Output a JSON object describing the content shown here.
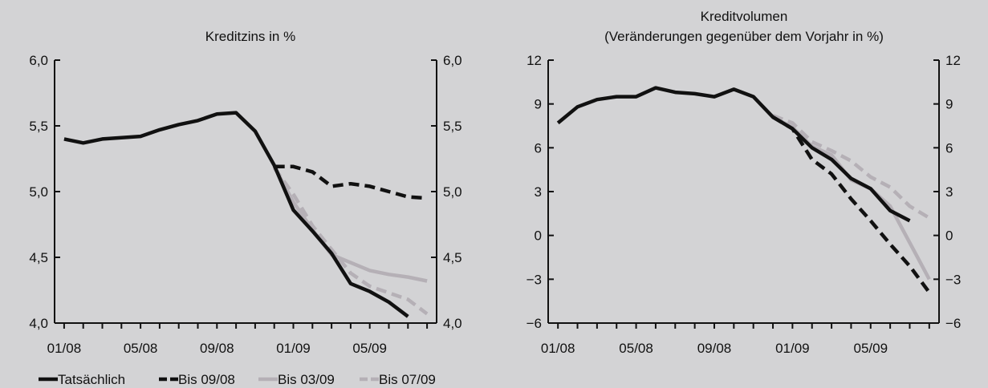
{
  "page": {
    "background": "#d3d3d5"
  },
  "legend": [
    {
      "label": "Tatsächlich",
      "color": "#111111",
      "dash": "solid"
    },
    {
      "label": "Bis 09/08",
      "color": "#111111",
      "dash": "dashed"
    },
    {
      "label": "Bis 03/09",
      "color": "#b5b0b6",
      "dash": "solid"
    },
    {
      "label": "Bis 07/09",
      "color": "#b5b0b6",
      "dash": "dashed"
    }
  ],
  "chart_data": [
    {
      "type": "line",
      "title": "Kreditzins in %",
      "title_lines": [
        "Kreditzins in %"
      ],
      "x_tick_labels": [
        "01/08",
        "05/08",
        "09/08",
        "01/09",
        "05/09"
      ],
      "x_tick_positions": [
        0,
        4,
        8,
        12,
        16
      ],
      "xlim": [
        -0.5,
        19.5
      ],
      "ylim": [
        4.0,
        6.0
      ],
      "y_ticks": [
        4.0,
        4.5,
        5.0,
        5.5,
        6.0
      ],
      "y_tick_labels": [
        "4,0",
        "4,5",
        "5,0",
        "5,5",
        "6,0"
      ],
      "grid": false,
      "series": [
        {
          "name": "Bis 07/09",
          "x": [
            11,
            12,
            13,
            14,
            15,
            16,
            17,
            18,
            19
          ],
          "values": [
            5.18,
            4.98,
            4.74,
            4.56,
            4.38,
            4.28,
            4.23,
            4.18,
            4.07
          ]
        },
        {
          "name": "Bis 03/09",
          "x": [
            11,
            12,
            13,
            14,
            15,
            16,
            17,
            18,
            19
          ],
          "values": [
            5.19,
            4.92,
            4.71,
            4.52,
            4.46,
            4.4,
            4.37,
            4.35,
            4.32
          ]
        },
        {
          "name": "Bis 09/08",
          "x": [
            11,
            12,
            13,
            14,
            15,
            16,
            17,
            18,
            19
          ],
          "values": [
            5.19,
            5.19,
            5.15,
            5.04,
            5.06,
            5.04,
            5.0,
            4.96,
            4.95
          ]
        },
        {
          "name": "Tatsächlich",
          "x": [
            0,
            1,
            2,
            3,
            4,
            5,
            6,
            7,
            8,
            9,
            10,
            11,
            12,
            13,
            14,
            15,
            16,
            17,
            18,
            19
          ],
          "values": [
            5.4,
            5.37,
            5.4,
            5.41,
            5.42,
            5.47,
            5.51,
            5.54,
            5.59,
            5.6,
            5.46,
            5.2,
            4.86,
            4.7,
            4.53,
            4.3,
            4.24,
            4.16,
            4.05,
            null
          ]
        }
      ]
    },
    {
      "type": "line",
      "title": "Kreditvolumen (Veränderungen gegenüber dem Vorjahr in %)",
      "title_lines": [
        "Kreditvolumen",
        "(Veränderungen gegenüber dem Vorjahr in %)"
      ],
      "x_tick_labels": [
        "01/08",
        "05/08",
        "09/08",
        "01/09",
        "05/09"
      ],
      "x_tick_positions": [
        0,
        4,
        8,
        12,
        16
      ],
      "xlim": [
        -0.5,
        19.5
      ],
      "ylim": [
        -6,
        12
      ],
      "y_ticks": [
        -6,
        -3,
        0,
        3,
        6,
        9,
        12
      ],
      "y_tick_labels": [
        "−6",
        "−3",
        "0",
        "3",
        "6",
        "9",
        "12"
      ],
      "grid": false,
      "series": [
        {
          "name": "Bis 07/09",
          "x": [
            11,
            12,
            13,
            14,
            15,
            16,
            17,
            18,
            19
          ],
          "values": [
            8.2,
            7.7,
            6.4,
            5.8,
            5.1,
            4.0,
            3.3,
            2.0,
            1.2
          ]
        },
        {
          "name": "Bis 03/09",
          "x": [
            11,
            12,
            13,
            14,
            15,
            16,
            17,
            18,
            19
          ],
          "values": [
            8.1,
            7.4,
            6.1,
            5.5,
            3.8,
            3.2,
            2.0,
            -0.5,
            -3.0
          ]
        },
        {
          "name": "Bis 09/08",
          "x": [
            11,
            12,
            13,
            14,
            15,
            16,
            17,
            18,
            19
          ],
          "values": [
            8.1,
            7.3,
            5.2,
            4.2,
            2.5,
            1.0,
            -0.6,
            -2.1,
            -3.9
          ]
        },
        {
          "name": "Tatsächlich",
          "x": [
            0,
            1,
            2,
            3,
            4,
            5,
            6,
            7,
            8,
            9,
            10,
            11,
            12,
            13,
            14,
            15,
            16,
            17,
            18,
            19
          ],
          "values": [
            7.7,
            8.8,
            9.3,
            9.5,
            9.5,
            10.1,
            9.8,
            9.7,
            9.5,
            10.0,
            9.5,
            8.1,
            7.3,
            6.0,
            5.2,
            3.9,
            3.2,
            1.7,
            1.0,
            null
          ]
        }
      ]
    }
  ]
}
